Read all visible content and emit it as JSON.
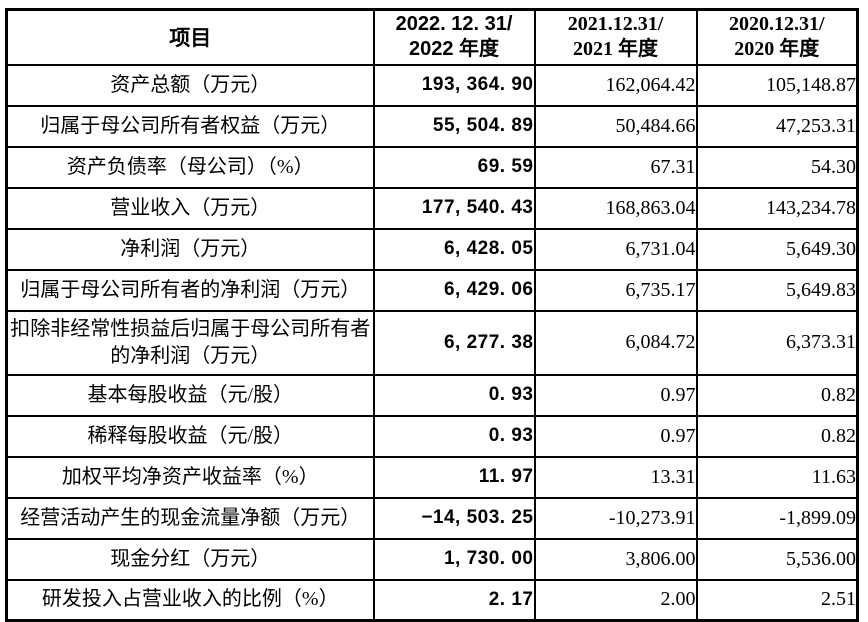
{
  "table": {
    "title_semantic": "key-financial-indicators-table",
    "text_color": "#000000",
    "border_color": "#000000",
    "background_color": "#ffffff",
    "header": {
      "item_label": "项目",
      "col_2022": {
        "line1": "2022. 12. 31/",
        "line2": "2022 年度"
      },
      "col_2021": {
        "line1": "2021.12.31/",
        "line2": "2021 年度"
      },
      "col_2020": {
        "line1": "2020.12.31/",
        "line2": "2020 年度"
      }
    },
    "rows": [
      {
        "label": "资产总额（万元）",
        "v2022": "193, 364. 90",
        "v2021": "162,064.42",
        "v2020": "105,148.87"
      },
      {
        "label": "归属于母公司所有者权益（万元）",
        "v2022": "55, 504. 89",
        "v2021": "50,484.66",
        "v2020": "47,253.31"
      },
      {
        "label": "资产负债率（母公司）（%）",
        "v2022": "69. 59",
        "v2021": "67.31",
        "v2020": "54.30"
      },
      {
        "label": "营业收入（万元）",
        "v2022": "177, 540. 43",
        "v2021": "168,863.04",
        "v2020": "143,234.78"
      },
      {
        "label": "净利润（万元）",
        "v2022": "6, 428. 05",
        "v2021": "6,731.04",
        "v2020": "5,649.30"
      },
      {
        "label": "归属于母公司所有者的净利润（万元）",
        "v2022": "6, 429. 06",
        "v2021": "6,735.17",
        "v2020": "5,649.83"
      },
      {
        "label": "扣除非经常性损益后归属于母公司所有者的净利润（万元）",
        "v2022": "6, 277. 38",
        "v2021": "6,084.72",
        "v2020": "6,373.31"
      },
      {
        "label": "基本每股收益（元/股）",
        "v2022": "0. 93",
        "v2021": "0.97",
        "v2020": "0.82"
      },
      {
        "label": "稀释每股收益（元/股）",
        "v2022": "0. 93",
        "v2021": "0.97",
        "v2020": "0.82"
      },
      {
        "label": "加权平均净资产收益率（%）",
        "v2022": "11. 97",
        "v2021": "13.31",
        "v2020": "11.63"
      },
      {
        "label": "经营活动产生的现金流量净额（万元）",
        "v2022": "−14, 503. 25",
        "v2021": "-10,273.91",
        "v2020": "-1,899.09"
      },
      {
        "label": "现金分红（万元）",
        "v2022": "1, 730. 00",
        "v2021": "3,806.00",
        "v2020": "5,536.00"
      },
      {
        "label": "研发投入占营业收入的比例（%）",
        "v2022": "2. 17",
        "v2021": "2.00",
        "v2020": "2.51"
      }
    ]
  }
}
